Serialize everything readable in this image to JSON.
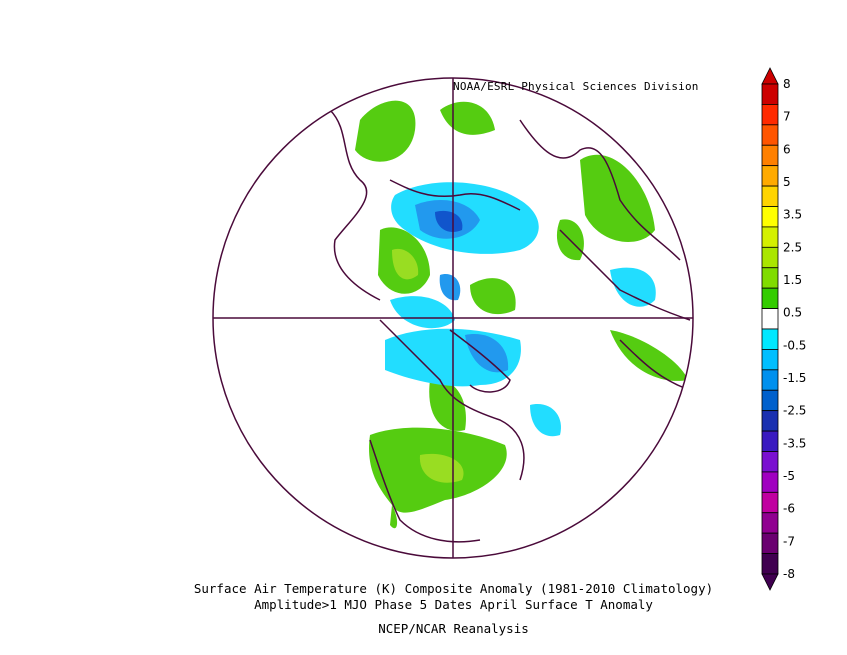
{
  "header": {
    "credit": "NOAA/ESRL Physical Sciences Division"
  },
  "caption": {
    "line1": "Surface Air Temperature (K) Composite Anomaly (1981-2010 Climatology)",
    "line2": "Amplitude>1 MJO Phase 5 Dates April Surface T Anomaly",
    "line3": "NCEP/NCAR Reanalysis"
  },
  "colorbar": {
    "levels": [
      {
        "label": "8",
        "color": "#cc0000"
      },
      {
        "label": "7",
        "color": "#ff2a00"
      },
      {
        "label": "6",
        "color": "#ff5500"
      },
      {
        "label": "5",
        "color": "#ff8000"
      },
      {
        "label": "3.5",
        "color": "#ffaa00"
      },
      {
        "label": "2.5",
        "color": "#ffd400"
      },
      {
        "label": "1.5",
        "color": "#ffff00"
      },
      {
        "label": "0.5",
        "color": "#d4f000"
      },
      {
        "label": "-0.5",
        "color": "#aae600"
      },
      {
        "label": "-1.5",
        "color": "#80dc00"
      },
      {
        "label": "-2.5",
        "color": "#33cc00"
      },
      {
        "label": "-3.5",
        "color": "#ffffff"
      },
      {
        "label": "-5",
        "color": "#00e8ff"
      },
      {
        "label": "-6",
        "color": "#00bfff"
      },
      {
        "label": "-7",
        "color": "#0090ee"
      },
      {
        "label": "-8",
        "color": "#0060cc"
      }
    ],
    "extra_colors": [
      "#1a30b0",
      "#3a1ac0",
      "#7a10d0",
      "#a000c0",
      "#c000a0",
      "#900090",
      "#6a0070",
      "#400050"
    ],
    "top_arrow_color": "#cc0000",
    "bottom_arrow_color": "#400050"
  },
  "colors": {
    "coast": "#4a0a3a",
    "green": "#55cc11",
    "lightgreen": "#99dd22",
    "cyan": "#22ddff",
    "blue": "#2299ee",
    "darkblue": "#1155cc"
  }
}
